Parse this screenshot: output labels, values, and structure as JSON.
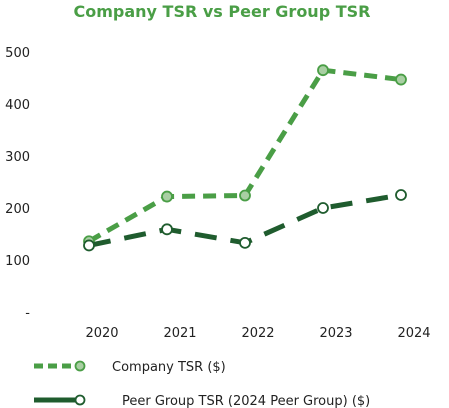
{
  "colors": {
    "company": "#4a9e46",
    "company_marker_fill": "#a9cfa3",
    "peer": "#1f5c2e",
    "peer_marker_fill": "#ffffff"
  },
  "chart_data": {
    "type": "line",
    "title": "Company TSR vs Peer Group TSR",
    "xlabel": "",
    "ylabel": "",
    "categories": [
      "2020",
      "2021",
      "2022",
      "2023",
      "2024"
    ],
    "y_ticks": [
      0,
      100,
      200,
      300,
      400,
      500
    ],
    "y_tick_labels": [
      "-",
      "100",
      "200",
      "300",
      "400",
      "500"
    ],
    "ylim": [
      0,
      500
    ],
    "grid": false,
    "legend_position": "bottom",
    "series": [
      {
        "name": "Company TSR ($)",
        "values": [
          136,
          222,
          224,
          465,
          447
        ],
        "style": "dashed",
        "color_key": "company"
      },
      {
        "name": "Peer Group TSR (2024 Peer Group) ($)",
        "values": [
          128,
          159,
          133,
          200,
          225
        ],
        "style": "long-dash",
        "color_key": "peer"
      }
    ]
  }
}
